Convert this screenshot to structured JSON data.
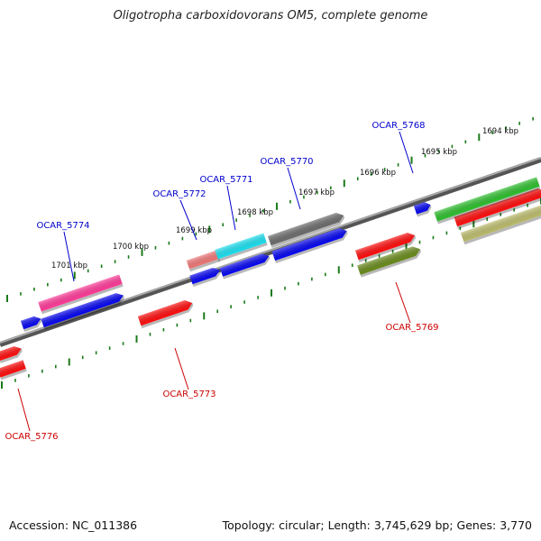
{
  "title": "Oligotropha carboxidovorans OM5, complete genome",
  "footer": {
    "accession": "Accession: NC_011386",
    "info": "Topology: circular; Length: 3,745,629 bp; Genes: 3,770"
  },
  "colors": {
    "backbone": "#7a7a7a",
    "tick": "#1a7a1a",
    "label_top": "#0000cc",
    "label_bottom": "#cc0000"
  },
  "kbp_labels": [
    "1694 kbp",
    "1695 kbp",
    "1696 kbp",
    "1697 kbp",
    "1698 kbp",
    "1699 kbp",
    "1700 kbp",
    "1701 kbp"
  ],
  "gene_labels": [
    {
      "id": "OCAR_5768",
      "strand": "top"
    },
    {
      "id": "OCAR_5770",
      "strand": "top"
    },
    {
      "id": "OCAR_5771",
      "strand": "top"
    },
    {
      "id": "OCAR_5772",
      "strand": "top"
    },
    {
      "id": "OCAR_5774",
      "strand": "top"
    },
    {
      "id": "OCAR_5769",
      "strand": "bottom"
    },
    {
      "id": "OCAR_5773",
      "strand": "bottom"
    },
    {
      "id": "OCAR_5776",
      "strand": "bottom"
    }
  ],
  "features": [
    {
      "color": "#ff3c9a",
      "kind": "box"
    },
    {
      "color": "#0a0af0",
      "kind": "arrow"
    },
    {
      "color": "#0a0af0",
      "kind": "arrow"
    },
    {
      "color": "#f07878",
      "kind": "box"
    },
    {
      "color": "#1ee0f0",
      "kind": "box"
    },
    {
      "color": "#0a0af0",
      "kind": "arrow"
    },
    {
      "color": "#0a0af0",
      "kind": "arrow"
    },
    {
      "color": "#6e6e6e",
      "kind": "arrow"
    },
    {
      "color": "#0a0af0",
      "kind": "arrow"
    },
    {
      "color": "#0a0af0",
      "kind": "arrow"
    },
    {
      "color": "#ff1010",
      "kind": "arrow"
    },
    {
      "color": "#ff1010",
      "kind": "arrow"
    },
    {
      "color": "#ff1010",
      "kind": "arrow"
    },
    {
      "color": "#6b8c1e",
      "kind": "arrow"
    },
    {
      "color": "#ff1010",
      "kind": "arrow"
    },
    {
      "color": "#bdbd6e",
      "kind": "arrow"
    },
    {
      "color": "#ff1010",
      "kind": "box"
    },
    {
      "color": "#30c030",
      "kind": "box"
    }
  ]
}
